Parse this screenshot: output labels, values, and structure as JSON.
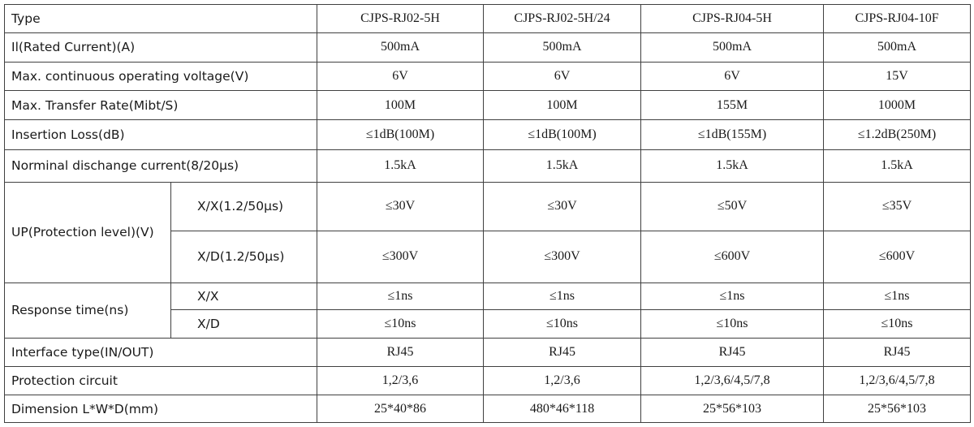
{
  "header": {
    "label": "Type",
    "models": [
      "CJPS-RJ02-5H",
      "CJPS-RJ02-5H/24",
      "CJPS-RJ04-5H",
      "CJPS-RJ04-10F"
    ]
  },
  "rows": {
    "rated_current": {
      "label": "Il(Rated Current)(A)",
      "values": [
        "500mA",
        "500mA",
        "500mA",
        "500mA"
      ]
    },
    "max_voltage": {
      "label": "Max. continuous operating voltage(V)",
      "values": [
        "6V",
        "6V",
        "6V",
        "15V"
      ]
    },
    "transfer_rate": {
      "label": "Max. Transfer Rate(Mibt/S)",
      "values": [
        "100M",
        "100M",
        "155M",
        "1000M"
      ]
    },
    "insertion_loss": {
      "label": "Insertion Loss(dB)",
      "values": [
        "≤1dB(100M)",
        "≤1dB(100M)",
        "≤1dB(155M)",
        "≤1.2dB(250M)"
      ]
    },
    "discharge_current": {
      "label": "Norminal dischange current(8/20μs)",
      "values": [
        "1.5kA",
        "1.5kA",
        "1.5kA",
        "1.5kA"
      ]
    },
    "protection_level": {
      "label": "UP(Protection level)(V)",
      "xx": {
        "label": "X/X(1.2/50μs)",
        "values": [
          "≤30V",
          "≤30V",
          "≤50V",
          "≤35V"
        ]
      },
      "xd": {
        "label": "X/D(1.2/50μs)",
        "values": [
          "≤300V",
          "≤300V",
          "≤600V",
          "≤600V"
        ]
      }
    },
    "response_time": {
      "label": "Response time(ns)",
      "xx": {
        "label": "X/X",
        "values": [
          "≤1ns",
          "≤1ns",
          "≤1ns",
          "≤1ns"
        ]
      },
      "xd": {
        "label": "X/D",
        "values": [
          "≤10ns",
          "≤10ns",
          "≤10ns",
          "≤10ns"
        ]
      }
    },
    "interface_type": {
      "label": "Interface type(IN/OUT)",
      "values": [
        "RJ45",
        "RJ45",
        "RJ45",
        "RJ45"
      ]
    },
    "protection_circuit": {
      "label": "Protection circuit",
      "values": [
        "1,2/3,6",
        "1,2/3,6",
        "1,2/3,6/4,5/7,8",
        "1,2/3,6/4,5/7,8"
      ]
    },
    "dimension": {
      "label": "Dimension L*W*D(mm)",
      "values": [
        "25*40*86",
        "480*46*118",
        "25*56*103",
        "25*56*103"
      ]
    }
  },
  "colors": {
    "border": "#404040",
    "text": "#1a1a1a",
    "background": "#ffffff"
  }
}
